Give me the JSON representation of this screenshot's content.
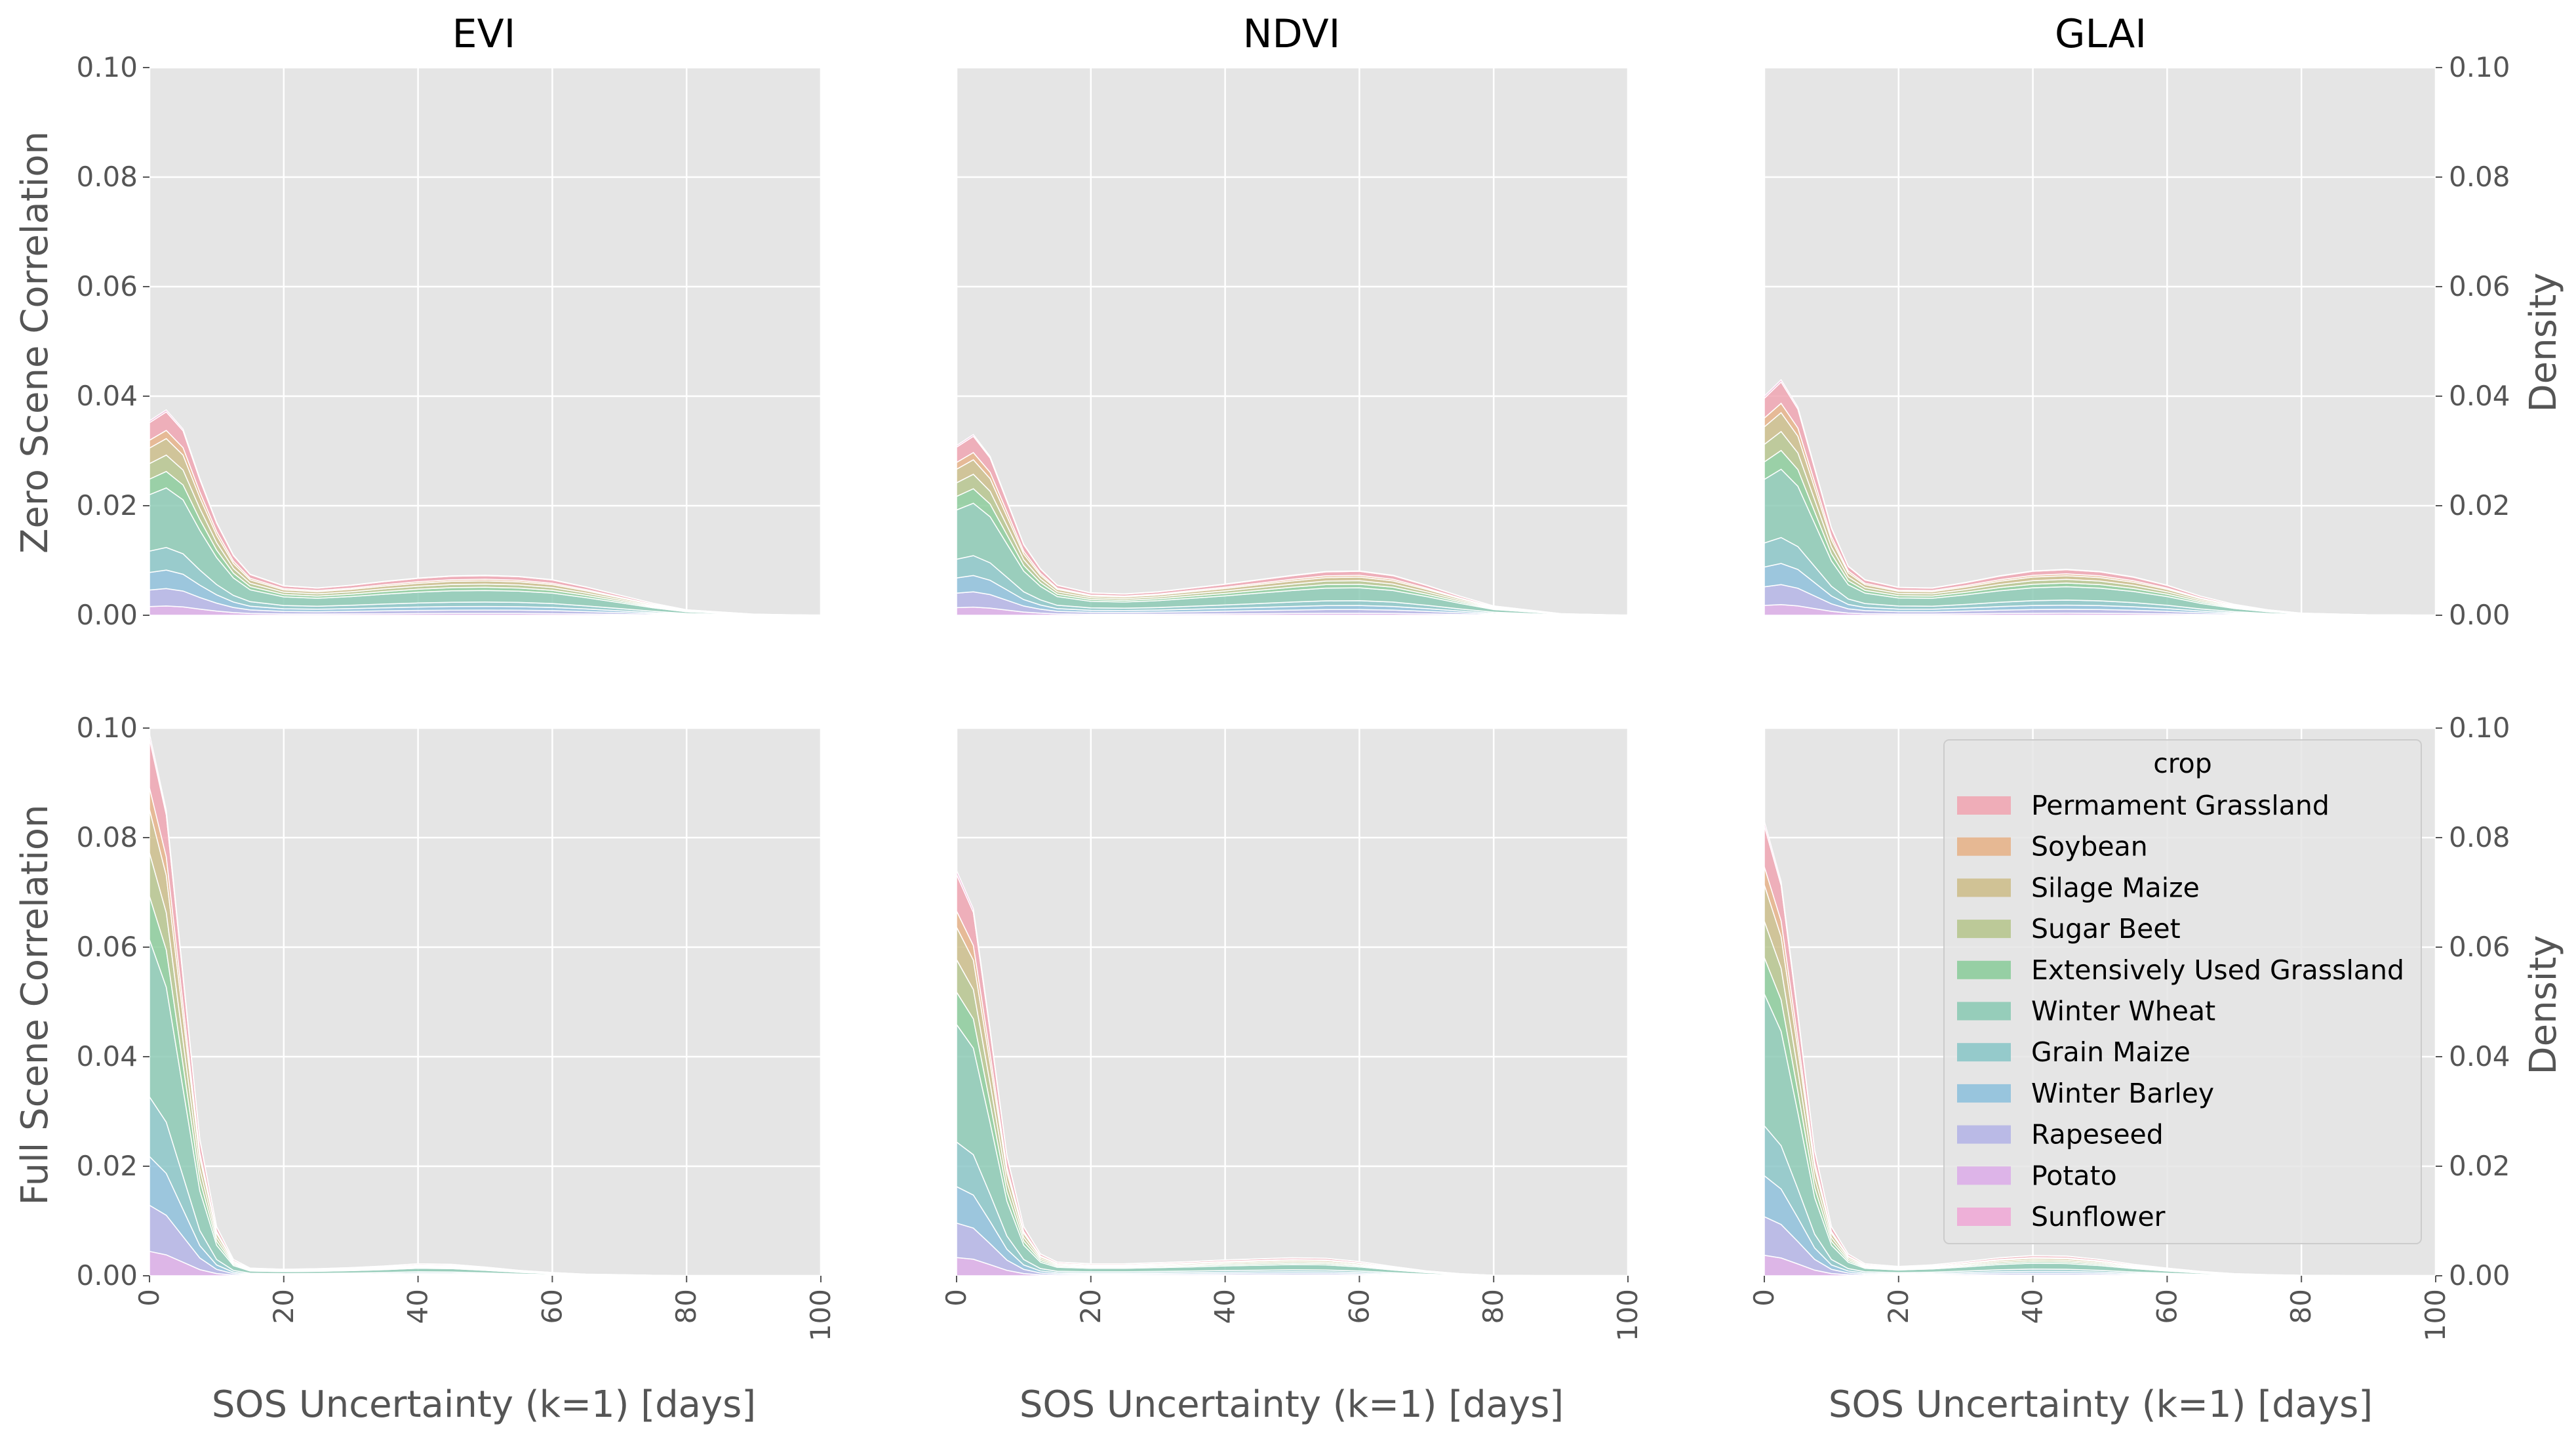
{
  "figure": {
    "column_titles": [
      "EVI",
      "NDVI",
      "GLAI"
    ],
    "row_labels": [
      "Zero Scene Correlation",
      "Full Scene Correlation"
    ],
    "right_label": "Density",
    "x_label": "SOS Uncertainty (k=1) [days]",
    "legend_title": "crop"
  },
  "chart_data": {
    "type": "area",
    "stacked": true,
    "x_range": [
      0,
      100
    ],
    "y_range": [
      0,
      0.1
    ],
    "x_ticks": [
      "0",
      "20",
      "40",
      "60",
      "80",
      "100"
    ],
    "y_ticks": [
      "0.00",
      "0.02",
      "0.04",
      "0.06",
      "0.08",
      "0.10"
    ],
    "grid": true,
    "legend_position": "right",
    "crops": [
      {
        "name": "Permament Grassland",
        "color": "#f0a6b3"
      },
      {
        "name": "Soybean",
        "color": "#e6b38a"
      },
      {
        "name": "Silage Maize",
        "color": "#cdbe8c"
      },
      {
        "name": "Sugar Beet",
        "color": "#b7c58f"
      },
      {
        "name": "Extensively Used Grassland",
        "color": "#8dcc9c"
      },
      {
        "name": "Winter Wheat",
        "color": "#8dcab5"
      },
      {
        "name": "Grain Maize",
        "color": "#8cc7c8"
      },
      {
        "name": "Winter Barley",
        "color": "#8fc1dc"
      },
      {
        "name": "Rapeseed",
        "color": "#b5b5e6"
      },
      {
        "name": "Potato",
        "color": "#dcaee8"
      },
      {
        "name": "Sunflower",
        "color": "#eeaad6"
      }
    ],
    "stack_order": [
      "Potato",
      "Rapeseed",
      "Winter Barley",
      "Grain Maize",
      "Winter Wheat",
      "Extensively Used Grassland",
      "Sugar Beet",
      "Silage Maize",
      "Soybean",
      "Permament Grassland",
      "Sunflower"
    ],
    "x": [
      0,
      2.5,
      5,
      7.5,
      10,
      12.5,
      15,
      20,
      25,
      30,
      35,
      40,
      45,
      50,
      55,
      60,
      65,
      70,
      75,
      80,
      90,
      100
    ],
    "panels": [
      {
        "index": "EVI",
        "condition": "Zero Scene Correlation",
        "cumulative": [
          0.0355,
          0.0375,
          0.034,
          0.025,
          0.017,
          0.011,
          0.0075,
          0.0054,
          0.005,
          0.0055,
          0.0062,
          0.0068,
          0.0072,
          0.0073,
          0.0071,
          0.0065,
          0.0052,
          0.0037,
          0.0022,
          0.001,
          0.0002,
          0.0
        ]
      },
      {
        "index": "NDVI",
        "condition": "Zero Scene Correlation",
        "cumulative": [
          0.031,
          0.033,
          0.029,
          0.021,
          0.013,
          0.0085,
          0.0055,
          0.0041,
          0.0039,
          0.0043,
          0.005,
          0.0057,
          0.0065,
          0.0073,
          0.008,
          0.0081,
          0.0073,
          0.0055,
          0.0035,
          0.0017,
          0.0003,
          0.0
        ]
      },
      {
        "index": "GLAI",
        "condition": "Zero Scene Correlation",
        "cumulative": [
          0.04,
          0.043,
          0.038,
          0.027,
          0.016,
          0.009,
          0.0065,
          0.0051,
          0.005,
          0.006,
          0.0072,
          0.0081,
          0.0084,
          0.008,
          0.007,
          0.0055,
          0.0035,
          0.002,
          0.001,
          0.0004,
          0.0001,
          0.0
        ]
      },
      {
        "index": "EVI",
        "condition": "Full Scene Correlation",
        "cumulative": [
          0.099,
          0.085,
          0.055,
          0.025,
          0.009,
          0.003,
          0.0014,
          0.0012,
          0.0013,
          0.0015,
          0.0018,
          0.0022,
          0.0021,
          0.0016,
          0.001,
          0.0006,
          0.0003,
          0.0002,
          0.0001,
          0.0,
          0.0,
          0.0
        ]
      },
      {
        "index": "NDVI",
        "condition": "Full Scene Correlation",
        "cumulative": [
          0.074,
          0.067,
          0.045,
          0.022,
          0.009,
          0.004,
          0.0025,
          0.0022,
          0.0022,
          0.0024,
          0.0026,
          0.0029,
          0.0031,
          0.0033,
          0.0032,
          0.0026,
          0.0017,
          0.0009,
          0.0004,
          0.0001,
          0.0,
          0.0
        ]
      },
      {
        "index": "GLAI",
        "condition": "Full Scene Correlation",
        "cumulative": [
          0.083,
          0.072,
          0.048,
          0.023,
          0.009,
          0.004,
          0.0022,
          0.0017,
          0.002,
          0.0026,
          0.0033,
          0.0037,
          0.0036,
          0.003,
          0.0021,
          0.0014,
          0.0008,
          0.0004,
          0.0002,
          0.0001,
          0.0,
          0.0
        ]
      }
    ]
  }
}
